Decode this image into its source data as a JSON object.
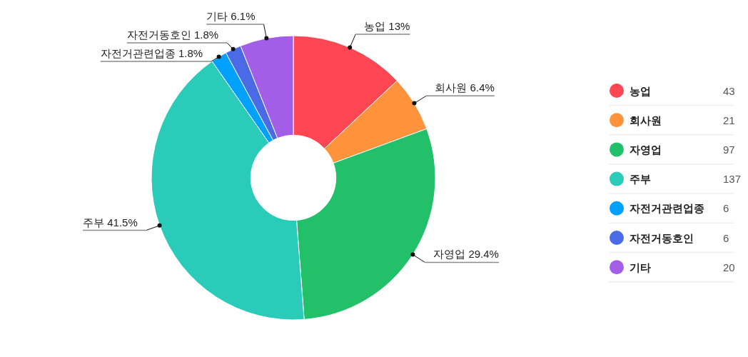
{
  "chart_data": {
    "type": "donut",
    "categories": [
      "농업",
      "회사원",
      "자영업",
      "주부",
      "자전거관련업종",
      "자전거동호인",
      "기타"
    ],
    "values": [
      43,
      21,
      97,
      137,
      6,
      6,
      20
    ],
    "colors": [
      "#ff4753",
      "#fe933c",
      "#22c069",
      "#2bcbba",
      "#00a0ff",
      "#4a6ae6",
      "#a35ee8"
    ],
    "data_labels": true,
    "annotations": [
      {
        "text": "농업 13%",
        "x": "농업"
      },
      {
        "text": "회사원 6.4%",
        "x": "회사원"
      },
      {
        "text": "자영업 29.4%",
        "x": "자영업"
      },
      {
        "text": "주부 41.5%",
        "x": "주부"
      },
      {
        "text": "자전거관련업종 1.8%",
        "x": "자전거관련업종"
      },
      {
        "text": "자전거동호인 1.8%",
        "x": "자전거동호인"
      },
      {
        "text": "기타 6.1%",
        "x": "기타"
      }
    ],
    "legend": "right"
  }
}
